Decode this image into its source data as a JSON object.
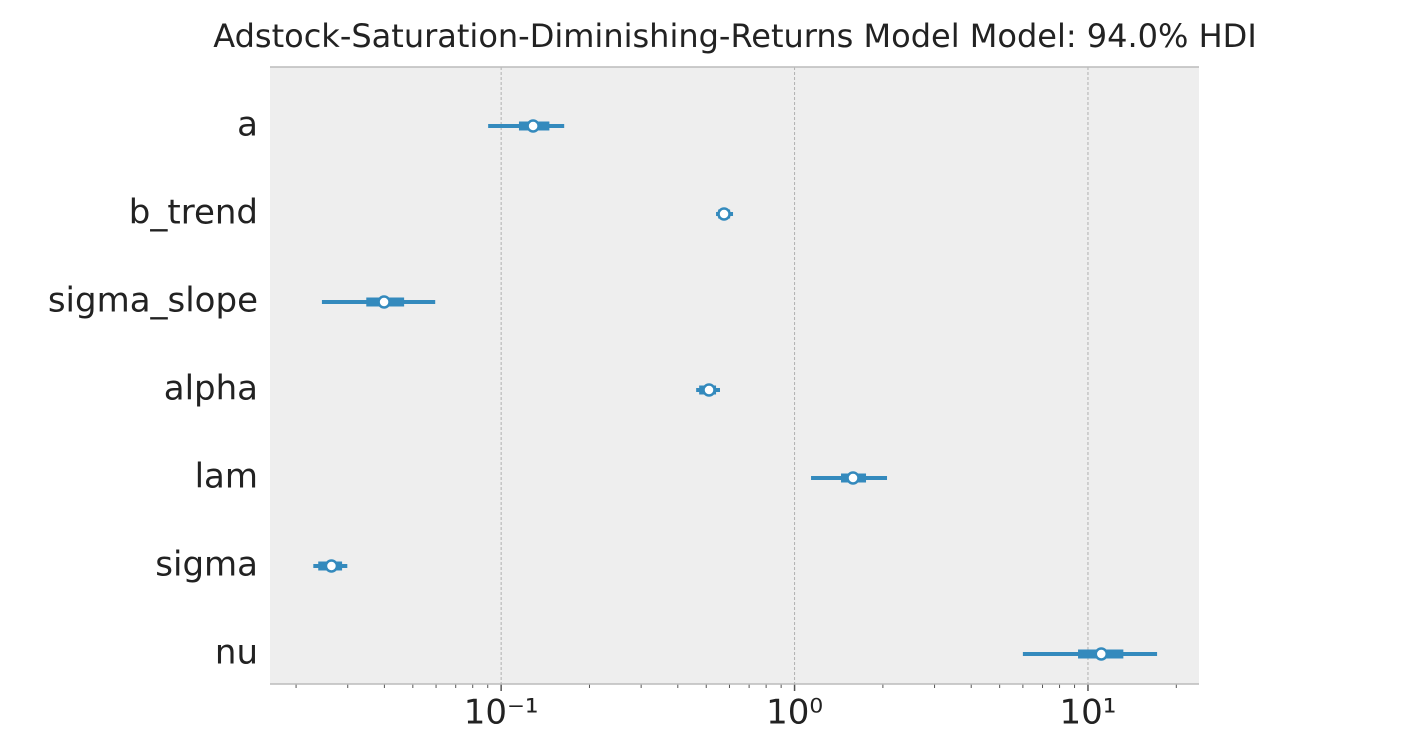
{
  "chart_data": {
    "type": "forest",
    "title": "Adstock-Saturation-Diminishing-Returns Model Model: 94.0% HDI",
    "categories": [
      "a",
      "b_trend",
      "sigma_slope",
      "alpha",
      "lam",
      "sigma",
      "nu"
    ],
    "medians": [
      0.1285,
      0.575,
      0.0399,
      0.511,
      1.582,
      0.0264,
      11.1
    ],
    "hdi_lows": [
      0.0903,
      0.54,
      0.0245,
      0.462,
      1.138,
      0.0229,
      6.0
    ],
    "hdi_highs": [
      0.164,
      0.617,
      0.0596,
      0.557,
      2.066,
      0.0299,
      17.2
    ],
    "quartile_lows": [
      0.115,
      0.549,
      0.0347,
      0.473,
      1.44,
      0.0238,
      9.25
    ],
    "quartile_highs": [
      0.146,
      0.603,
      0.0467,
      0.54,
      1.752,
      0.0287,
      13.2
    ],
    "color": "#348abd",
    "xscale": "log",
    "xlim": [
      0.0163,
      23.9
    ],
    "xticks": [
      {
        "value": 0.1,
        "label": "10⁻¹"
      },
      {
        "value": 1,
        "label": "10⁰"
      },
      {
        "value": 10,
        "label": "10¹"
      }
    ],
    "xminorticks": [
      0.02,
      0.03,
      0.04,
      0.05,
      0.06,
      0.07,
      0.08,
      0.09,
      0.2,
      0.3,
      0.4,
      0.5,
      0.6,
      0.7,
      0.8,
      0.9,
      2,
      3,
      4,
      5,
      6,
      7,
      8,
      9,
      20
    ],
    "grid": true
  }
}
